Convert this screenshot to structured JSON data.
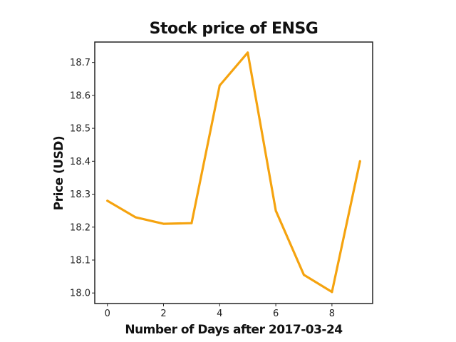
{
  "chart_data": {
    "type": "line",
    "title": "Stock price of ENSG",
    "xlabel": "Number of Days after 2017-03-24",
    "ylabel": "Price (USD)",
    "xlim": [
      -0.45,
      9.45
    ],
    "ylim": [
      17.968,
      18.762
    ],
    "xticks": [
      0,
      2,
      4,
      6,
      8
    ],
    "yticks": [
      18.0,
      18.1,
      18.2,
      18.3,
      18.4,
      18.5,
      18.6,
      18.7
    ],
    "grid": false,
    "series": [
      {
        "color": "#f5a30f",
        "x": [
          0,
          1,
          2,
          3,
          4,
          5,
          6,
          7,
          8,
          9
        ],
        "y": [
          18.28,
          18.23,
          18.21,
          18.212,
          18.63,
          18.73,
          18.25,
          18.055,
          18.003,
          18.4
        ]
      }
    ]
  }
}
